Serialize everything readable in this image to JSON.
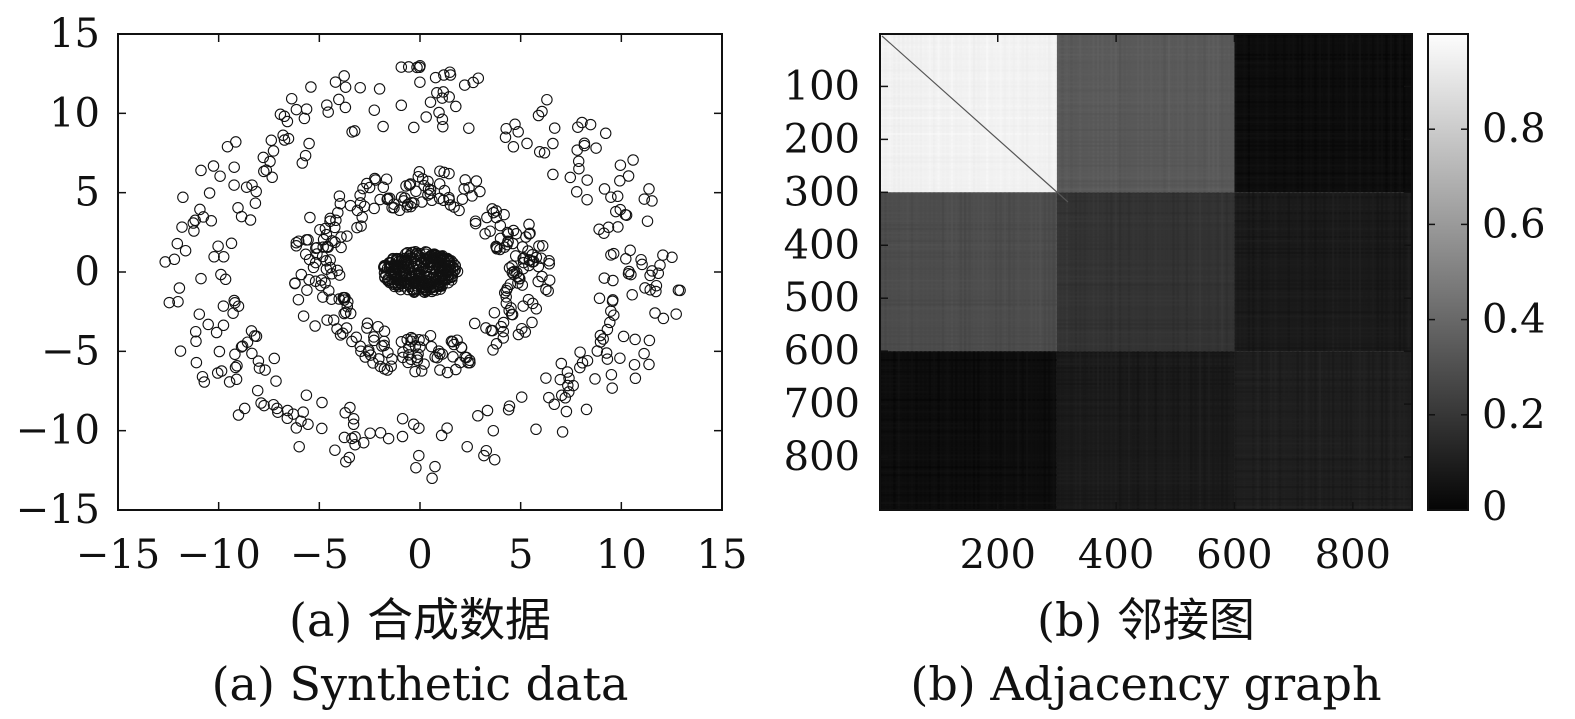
{
  "chart_data": [
    {
      "type": "scatter",
      "caption_zh": "(a) 合成数据",
      "caption_en": "(a) Synthetic data",
      "xlim": [
        -15,
        15
      ],
      "ylim": [
        -15,
        15
      ],
      "xticks": [
        -15,
        -10,
        -5,
        0,
        5,
        10,
        15
      ],
      "yticks": [
        -15,
        -10,
        -5,
        0,
        5,
        10,
        15
      ],
      "marker": "open-circle",
      "grid": false,
      "series": [
        {
          "cluster": 1,
          "count": 300,
          "center": [
            0,
            0
          ],
          "radius_range": [
            0,
            1.8
          ]
        },
        {
          "cluster": 2,
          "count": 300,
          "center": [
            0,
            0
          ],
          "radius_range": [
            4,
            6.5
          ]
        },
        {
          "cluster": 3,
          "count": 300,
          "center": [
            0,
            0
          ],
          "radius_range": [
            9,
            13
          ]
        }
      ],
      "annotations": [
        {
          "x": 0,
          "y": 13
        },
        {
          "x": -12.2,
          "y": 0.8
        },
        {
          "x": 11.3,
          "y": 3.2
        },
        {
          "x": 0.6,
          "y": -13
        }
      ]
    },
    {
      "type": "heatmap",
      "caption_zh": "(b) 邻接图",
      "caption_en": "(b) Adjacency graph",
      "xlim": [
        1,
        900
      ],
      "ylim": [
        1,
        900
      ],
      "xticks": [
        200,
        400,
        600,
        800
      ],
      "yticks": [
        100,
        200,
        300,
        400,
        500,
        600,
        700,
        800
      ],
      "colormap": "gray",
      "colorbar": {
        "range": [
          0,
          1
        ],
        "ticks": [
          0,
          0.2,
          0.4,
          0.6,
          0.8
        ]
      },
      "block_boundaries": [
        1,
        300,
        600,
        900
      ],
      "block_means": [
        [
          0.95,
          0.35,
          0.05
        ],
        [
          0.3,
          0.2,
          0.1
        ],
        [
          0.05,
          0.1,
          0.12
        ]
      ],
      "diagonal": 0
    }
  ]
}
